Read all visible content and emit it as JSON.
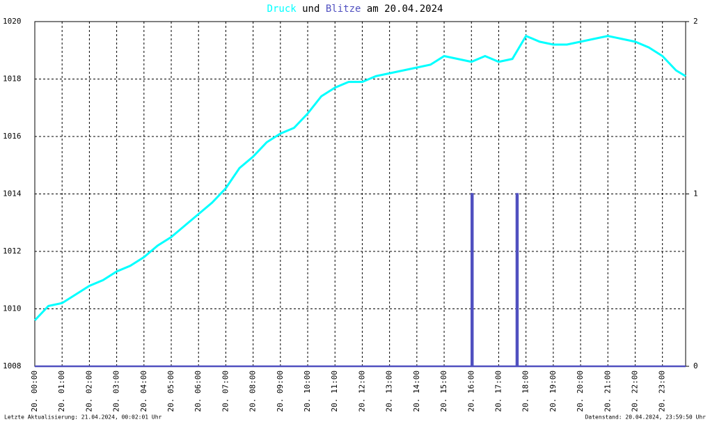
{
  "chart_data": {
    "type": "line",
    "title_joiner": "und",
    "title_date": "am 20.04.2024",
    "footer_left": "Letzte Aktualisierung: 21.04.2024, 00:02:01 Uhr",
    "footer_right": "Datenstand: 20.04.2024, 23:59:50 Uhr",
    "xlim": [
      0,
      23.85
    ],
    "xticks": [
      {
        "value": 0,
        "label": "20. 00:00"
      },
      {
        "value": 1,
        "label": "20. 01:00"
      },
      {
        "value": 2,
        "label": "20. 02:00"
      },
      {
        "value": 3,
        "label": "20. 03:00"
      },
      {
        "value": 4,
        "label": "20. 04:00"
      },
      {
        "value": 5,
        "label": "20. 05:00"
      },
      {
        "value": 6,
        "label": "20. 06:00"
      },
      {
        "value": 7,
        "label": "20. 07:00"
      },
      {
        "value": 8,
        "label": "20. 08:00"
      },
      {
        "value": 9,
        "label": "20. 09:00"
      },
      {
        "value": 10,
        "label": "20. 10:00"
      },
      {
        "value": 11,
        "label": "20. 11:00"
      },
      {
        "value": 12,
        "label": "20. 12:00"
      },
      {
        "value": 13,
        "label": "20. 13:00"
      },
      {
        "value": 14,
        "label": "20. 14:00"
      },
      {
        "value": 15,
        "label": "20. 15:00"
      },
      {
        "value": 16,
        "label": "20. 16:00"
      },
      {
        "value": 17,
        "label": "20. 17:00"
      },
      {
        "value": 18,
        "label": "20. 18:00"
      },
      {
        "value": 19,
        "label": "20. 19:00"
      },
      {
        "value": 20,
        "label": "20. 20:00"
      },
      {
        "value": 21,
        "label": "20. 21:00"
      },
      {
        "value": 22,
        "label": "20. 22:00"
      },
      {
        "value": 23,
        "label": "20. 23:00"
      }
    ],
    "ylim": [
      1008,
      1020
    ],
    "yticks": [
      1008,
      1010,
      1012,
      1014,
      1016,
      1018,
      1020
    ],
    "y2lim": [
      0,
      2
    ],
    "y2ticks": [
      0,
      1,
      2
    ],
    "grid": true,
    "series": [
      {
        "name": "Druck",
        "color": "#00ffff",
        "x": [
          0,
          0.5,
          1,
          1.5,
          2,
          2.5,
          3,
          3.5,
          4,
          4.5,
          5,
          5.5,
          6,
          6.5,
          7,
          7.5,
          8,
          8.5,
          9,
          9.5,
          10,
          10.5,
          11,
          11.5,
          12,
          12.5,
          13,
          13.5,
          14,
          14.5,
          15,
          15.5,
          16,
          16.5,
          17,
          17.5,
          18,
          18.5,
          19,
          19.5,
          20,
          20.5,
          21,
          21.5,
          22,
          22.5,
          23,
          23.5,
          23.85
        ],
        "values": [
          1009.6,
          1010.1,
          1010.2,
          1010.5,
          1010.8,
          1011.0,
          1011.3,
          1011.5,
          1011.8,
          1012.2,
          1012.5,
          1012.9,
          1013.3,
          1013.7,
          1014.2,
          1014.9,
          1015.3,
          1015.8,
          1016.1,
          1016.3,
          1016.8,
          1017.4,
          1017.7,
          1017.9,
          1017.9,
          1018.1,
          1018.2,
          1018.3,
          1018.4,
          1018.5,
          1018.8,
          1018.7,
          1018.6,
          1018.8,
          1018.6,
          1018.7,
          1019.5,
          1019.3,
          1019.2,
          1019.2,
          1019.3,
          1019.4,
          1019.5,
          1019.4,
          1019.3,
          1019.1,
          1018.8,
          1018.3,
          1018.1
        ]
      },
      {
        "name": "Blitze",
        "color": "#5050c0",
        "axis": "y2",
        "x": [
          0,
          16.0,
          16.0,
          16.05,
          16.05,
          17.65,
          17.65,
          17.7,
          17.7,
          23.85
        ],
        "values": [
          0,
          0,
          1,
          1,
          0,
          0,
          1,
          1,
          0,
          0
        ]
      }
    ]
  }
}
